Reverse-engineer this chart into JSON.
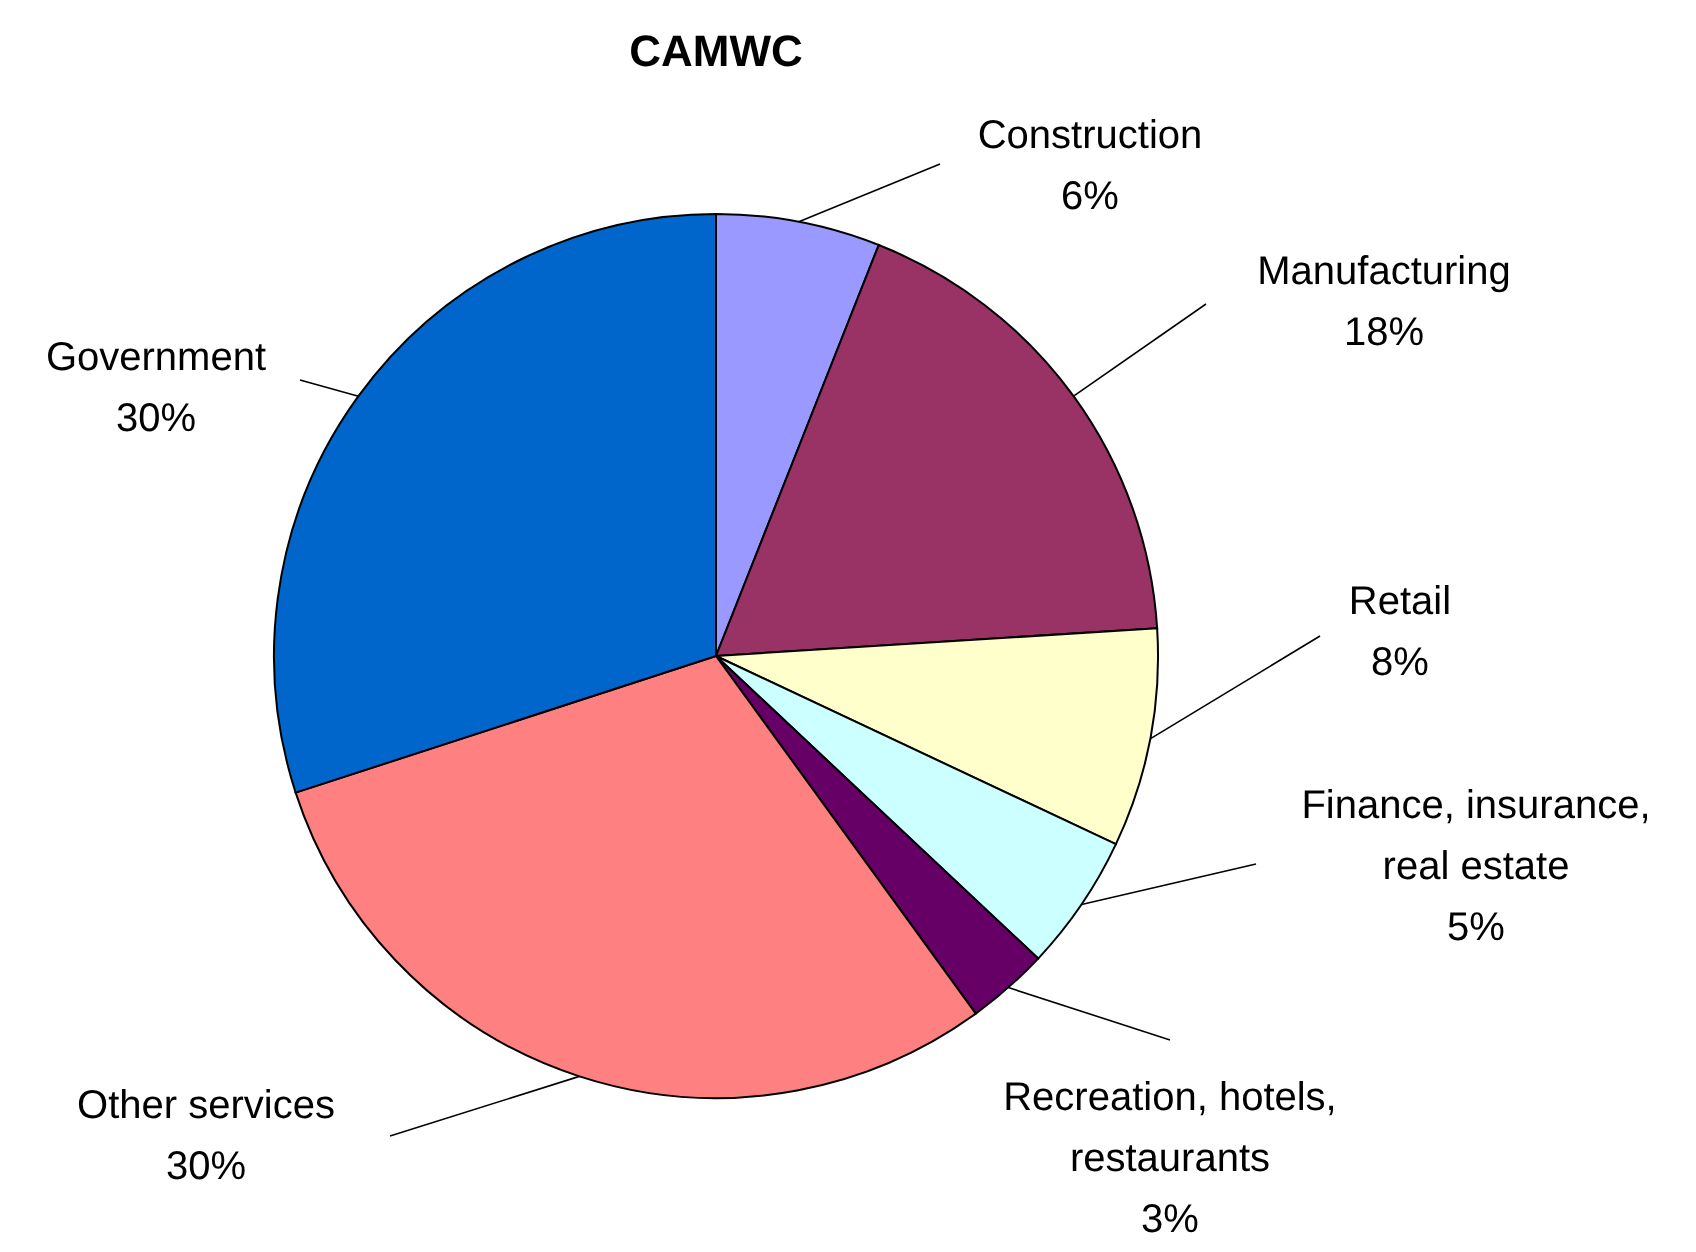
{
  "chart_data": {
    "type": "pie",
    "title": "CAMWC",
    "categories": [
      "Construction",
      "Manufacturing",
      "Retail",
      "Finance, insurance, real estate",
      "Recreation, hotels, restaurants",
      "Other services",
      "Government"
    ],
    "values": [
      6,
      18,
      8,
      5,
      3,
      30,
      30
    ],
    "value_labels": [
      "6%",
      "18%",
      "8%",
      "5%",
      "3%",
      "30%",
      "30%"
    ],
    "colors": [
      "#9999ff",
      "#993366",
      "#ffffcc",
      "#ccffff",
      "#660066",
      "#ff8080",
      "#0066cc"
    ]
  }
}
